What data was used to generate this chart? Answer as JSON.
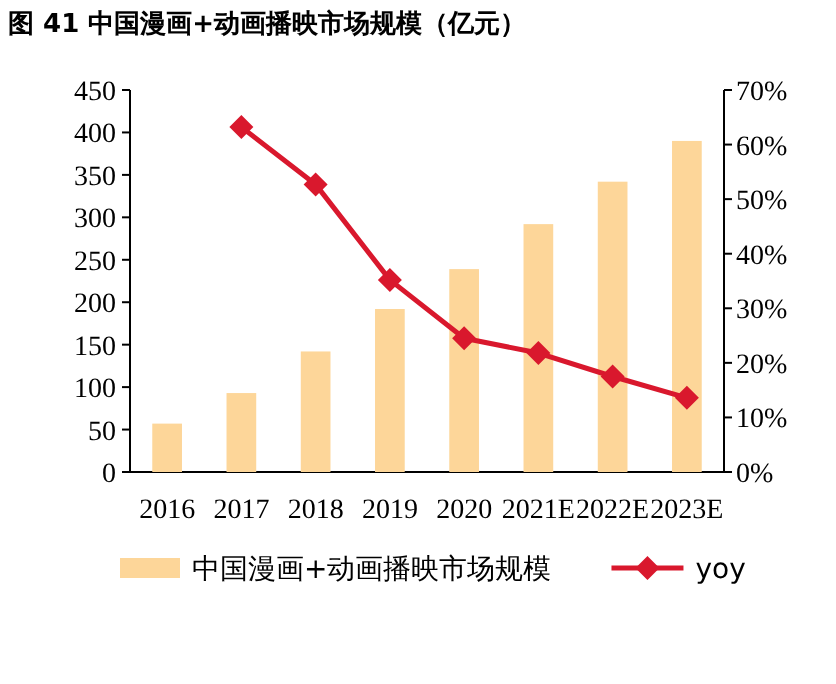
{
  "chart_data": {
    "type": "bar",
    "title": "图 41  中国漫画+动画播映市场规模（亿元）",
    "categories": [
      "2016",
      "2017",
      "2018",
      "2019",
      "2020",
      "2021E",
      "2022E",
      "2023E"
    ],
    "series": [
      {
        "name": "中国漫画+动画播映市场规模",
        "color": "#fdd699",
        "values": [
          57,
          93,
          142,
          192,
          239,
          292,
          342,
          390
        ]
      },
      {
        "name": "yoy",
        "type": "line",
        "axis": "y2",
        "color": "#d9182d",
        "marker": "diamond",
        "values": [
          null,
          63.2,
          52.7,
          35.2,
          24.5,
          21.8,
          17.5,
          13.6
        ]
      }
    ],
    "ylim": [
      0,
      450
    ],
    "yticks": [
      0,
      50,
      100,
      150,
      200,
      250,
      300,
      350,
      400,
      450
    ],
    "y2lim": [
      0,
      70
    ],
    "y2ticks": [
      {
        "value": 0,
        "label": "0%"
      },
      {
        "value": 10,
        "label": "10%"
      },
      {
        "value": 20,
        "label": "20%"
      },
      {
        "value": 30,
        "label": "30%"
      },
      {
        "value": 40,
        "label": "40%"
      },
      {
        "value": 50,
        "label": "50%"
      },
      {
        "value": 60,
        "label": "60%"
      },
      {
        "value": 70,
        "label": "70%"
      }
    ],
    "grid": false,
    "legend": "bottom"
  }
}
